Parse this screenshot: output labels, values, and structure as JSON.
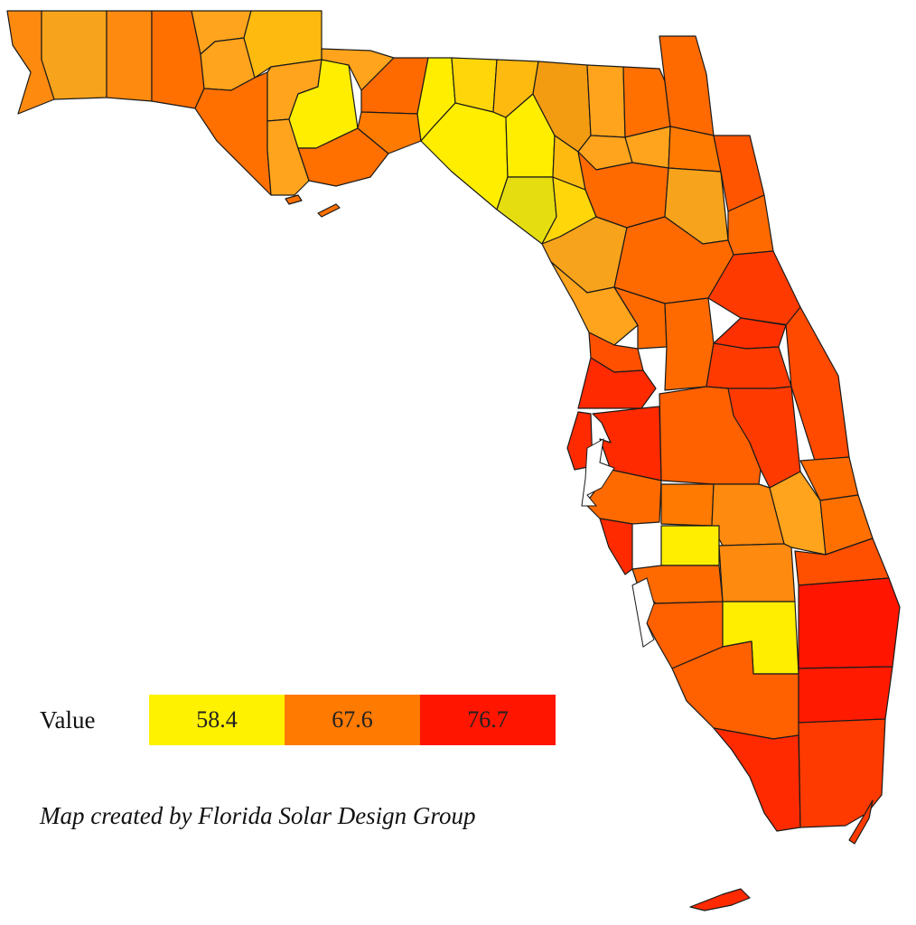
{
  "map": {
    "title": "",
    "region": "Florida",
    "colors": {
      "low": "#fff200",
      "mid": "#ff7a00",
      "high": "#ff1500",
      "border": "#1a1a1a"
    }
  },
  "legend": {
    "title": "Value",
    "stops": [
      {
        "label": "58.4",
        "color": "#fff200"
      },
      {
        "label": "67.6",
        "color": "#ff7a00"
      },
      {
        "label": "76.7",
        "color": "#ff1500"
      }
    ]
  },
  "credit": "Map created by Florida Solar Design Group"
}
